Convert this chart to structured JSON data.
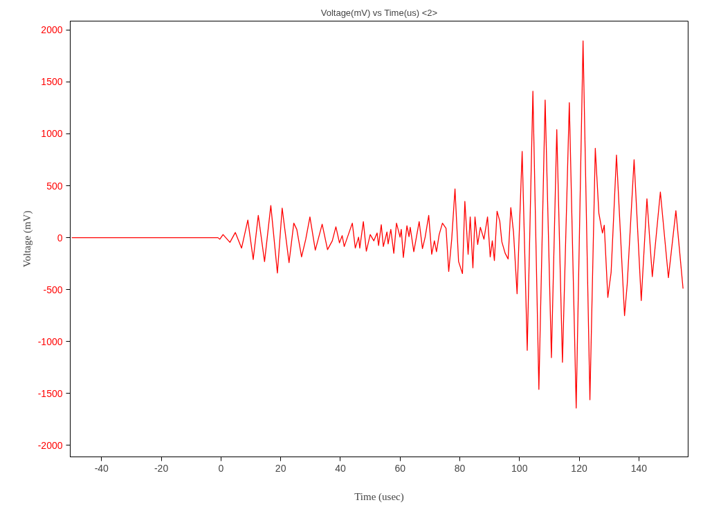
{
  "chart_data": {
    "type": "line",
    "title": "Voltage(mV) vs Time(us) <2>",
    "xlabel": "Time (usec)",
    "ylabel": "Voltage (mV)",
    "xlim": [
      -50.5,
      156.5
    ],
    "ylim": [
      -2110,
      2085
    ],
    "xticks": [
      -40,
      -20,
      0,
      20,
      40,
      60,
      80,
      100,
      120,
      140
    ],
    "yticks": [
      -2000,
      -1500,
      -1000,
      -500,
      0,
      500,
      1000,
      1500,
      2000
    ],
    "grid": false,
    "line_style": "solid",
    "series": [
      {
        "color": "#ff0000",
        "x": [
          -50,
          -1,
          -0.4,
          0.7,
          3,
          4.8,
          6.9,
          9,
          10.8,
          12.5,
          14.6,
          16.7,
          18.9,
          20.5,
          22.8,
          24.4,
          25.4,
          27,
          28.4,
          29.8,
          31.6,
          33.9,
          35.7,
          37.3,
          38.5,
          39.7,
          40.6,
          41.3,
          44,
          45,
          46.1,
          46.5,
          47.7,
          48.7,
          50,
          51.2,
          52.3,
          52.8,
          53.7,
          54.4,
          55.6,
          56,
          56.9,
          57.9,
          58.8,
          60,
          60.4,
          61.1,
          62.3,
          63,
          63.4,
          64.6,
          66.4,
          67.5,
          68.4,
          69.6,
          70.6,
          71.5,
          72.2,
          73.1,
          74.2,
          75.4,
          76.3,
          77.3,
          78.4,
          79.6,
          80.9,
          81.7,
          82.8,
          83.5,
          84.4,
          85.1,
          86,
          86.9,
          88.1,
          89.3,
          90.2,
          90.9,
          91.6,
          92.5,
          93.4,
          94.1,
          95.2,
          96.2,
          97.1,
          98,
          99.2,
          100.9,
          102.6,
          104.5,
          106.5,
          108.6,
          110.7,
          112.5,
          114.4,
          116.7,
          119,
          121.3,
          123.6,
          125.4,
          126.6,
          127.8,
          128.4,
          129.6,
          130.7,
          132.5,
          135.2,
          136.1,
          138.4,
          140.8,
          142.7,
          144.5,
          147.2,
          149.9,
          152.4,
          154.8
        ],
        "values": [
          0,
          0,
          -15,
          30,
          -45,
          50,
          -100,
          170,
          -210,
          215,
          -230,
          310,
          -340,
          285,
          -240,
          140,
          80,
          -185,
          -15,
          200,
          -120,
          130,
          -115,
          -30,
          105,
          -50,
          20,
          -85,
          140,
          -100,
          5,
          -100,
          155,
          -130,
          30,
          -30,
          45,
          -75,
          125,
          -85,
          55,
          -60,
          80,
          -150,
          140,
          5,
          80,
          -190,
          115,
          10,
          100,
          -135,
          155,
          -105,
          5,
          215,
          -160,
          -30,
          -135,
          30,
          140,
          90,
          -325,
          -15,
          470,
          -230,
          -345,
          350,
          -160,
          200,
          -290,
          200,
          -65,
          100,
          -15,
          200,
          -185,
          -30,
          -220,
          255,
          160,
          -40,
          -150,
          -205,
          290,
          55,
          -540,
          830,
          -1085,
          1410,
          -1460,
          1325,
          -1155,
          1040,
          -1200,
          1300,
          -1640,
          1895,
          -1560,
          860,
          235,
          45,
          120,
          -575,
          -335,
          795,
          -750,
          -445,
          750,
          -605,
          375,
          -375,
          440,
          -385,
          260,
          -490
        ]
      }
    ]
  }
}
